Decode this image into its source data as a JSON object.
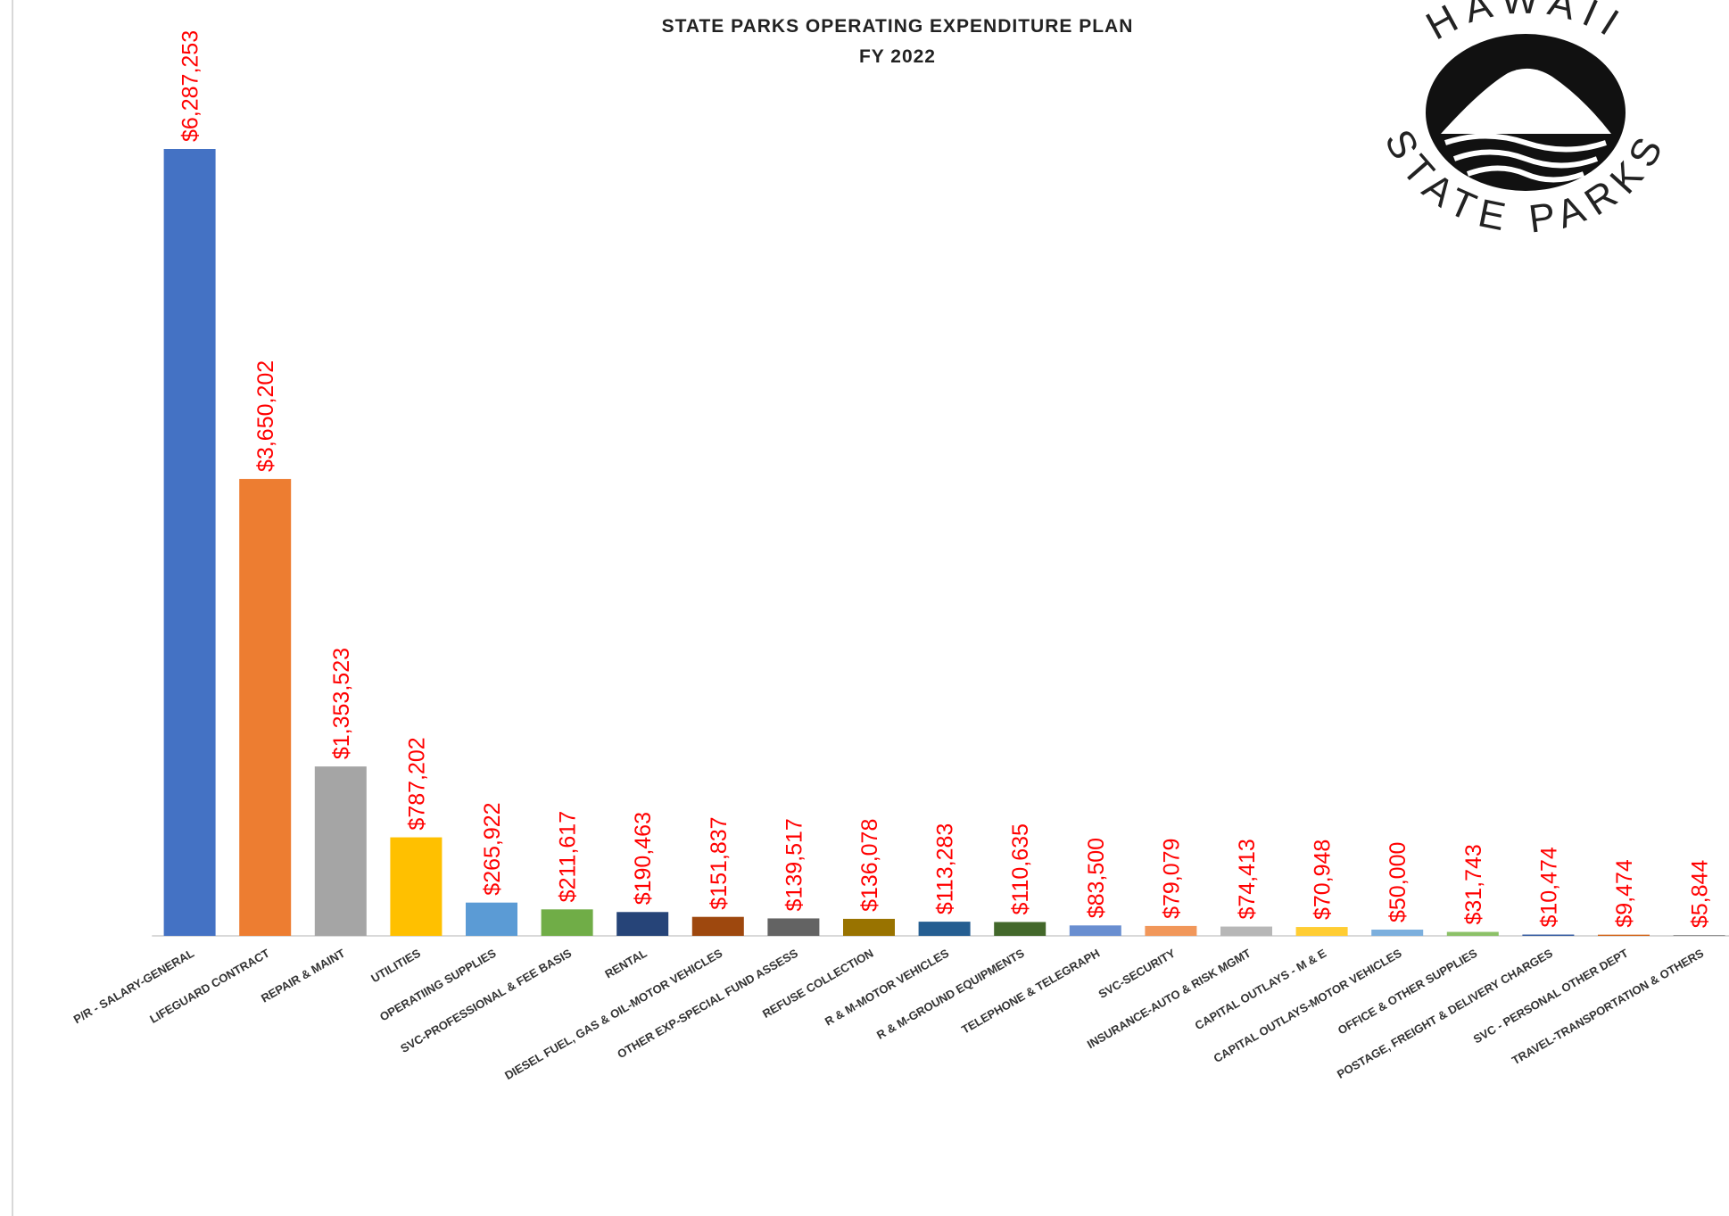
{
  "chart_data": {
    "type": "bar",
    "title": "STATE PARKS OPERATING EXPENDITURE PLAN",
    "subtitle": "FY 2022",
    "logo_top": "HAWAII",
    "logo_bottom": "STATE PARKS",
    "categories": [
      "P/R - SALARY-GENERAL",
      "LIFEGUARD CONTRACT",
      "REPAIR & MAINT",
      "UTILITIES",
      "OPERATIING SUPPLIES",
      "SVC-PROFESSIONAL & FEE BASIS",
      "RENTAL",
      "DIESEL FUEL, GAS & OIL-MOTOR VEHICLES",
      "OTHER EXP-SPECIAL FUND ASSESS",
      "REFUSE COLLECTION",
      "R & M-MOTOR VEHICLES",
      "R & M-GROUND EQUIPMENTS",
      "TELEPHONE & TELEGRAPH",
      "SVC-SECURITY",
      "INSURANCE-AUTO & RISK MGMT",
      "CAPITAL OUTLAYS - M & E",
      "CAPITAL OUTLAYS-MOTOR VEHICLES",
      "OFFICE & OTHER SUPPLIES",
      "POSTAGE, FREIGHT & DELIVERY CHARGES",
      "SVC - PERSONAL OTHER DEPT",
      "TRAVEL-TRANSPORTATION & OTHERS"
    ],
    "values": [
      6287253,
      3650202,
      1353523,
      787202,
      265922,
      211617,
      190463,
      151837,
      139517,
      136078,
      113283,
      110635,
      83500,
      79079,
      74413,
      70948,
      50000,
      31743,
      10474,
      9474,
      5844
    ],
    "value_labels": [
      "$6,287,253",
      "$3,650,202",
      "$1,353,523",
      "$787,202",
      "$265,922",
      "$211,617",
      "$190,463",
      "$151,837",
      "$139,517",
      "$136,078",
      "$113,283",
      "$110,635",
      "$83,500",
      "$79,079",
      "$74,413",
      "$70,948",
      "$50,000",
      "$31,743",
      "$10,474",
      "$9,474",
      "$5,844"
    ],
    "colors": [
      "#4472c4",
      "#ed7d31",
      "#a5a5a5",
      "#ffc000",
      "#5b9bd5",
      "#70ad47",
      "#264478",
      "#9e480e",
      "#636363",
      "#997300",
      "#255e91",
      "#43682b",
      "#698ed0",
      "#f1975a",
      "#b7b7b7",
      "#ffcd33",
      "#7cafdd",
      "#8cc168",
      "#335aa1",
      "#d26012",
      "#848484"
    ],
    "value_label_color": "#ff0000"
  }
}
